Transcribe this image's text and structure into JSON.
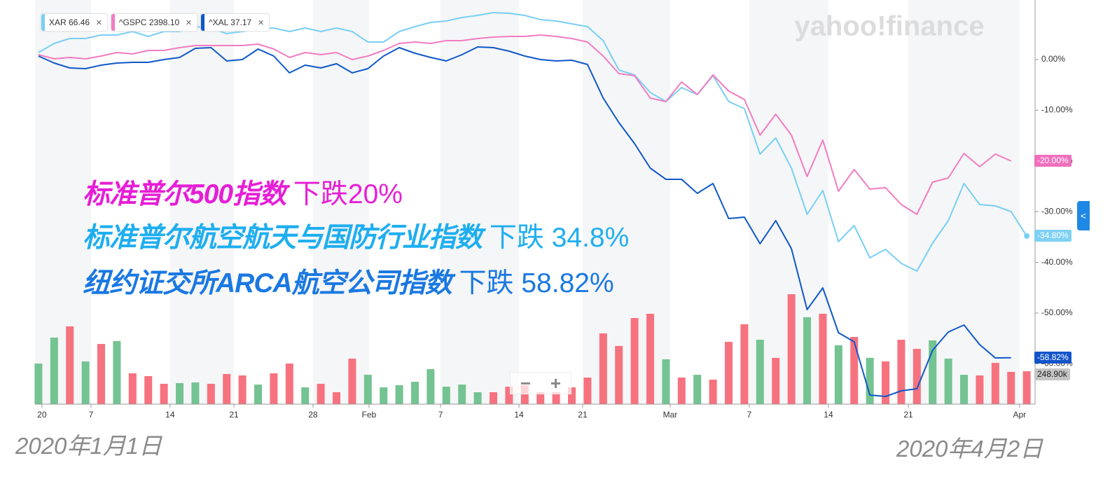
{
  "chart_data": {
    "type": "line",
    "watermark": "yahoo!finance",
    "x": [
      0,
      1,
      2,
      3,
      4,
      5,
      6,
      7,
      8,
      9,
      10,
      11,
      12,
      13,
      14,
      15,
      16,
      17,
      18,
      19,
      20,
      21,
      22,
      23,
      24,
      25,
      26,
      27,
      28,
      29,
      30,
      31,
      32,
      33,
      34,
      35,
      36,
      37,
      38,
      39,
      40,
      41,
      42,
      43,
      44,
      45,
      46,
      47,
      48,
      49,
      50,
      51,
      52,
      53,
      54,
      55,
      56,
      57,
      58,
      59,
      60,
      61,
      62,
      63
    ],
    "xlim": [
      -0.22,
      63.53
    ],
    "xticks": [
      {
        "value": 0.22,
        "label": "20"
      },
      {
        "value": 3.35,
        "label": "7"
      },
      {
        "value": 8.39,
        "label": "14"
      },
      {
        "value": 12.46,
        "label": "21"
      },
      {
        "value": 17.5,
        "label": "28"
      },
      {
        "value": 21.07,
        "label": "Feb"
      },
      {
        "value": 25.63,
        "label": "7"
      },
      {
        "value": 30.63,
        "label": "14"
      },
      {
        "value": 34.69,
        "label": "21"
      },
      {
        "value": 40.27,
        "label": "Mar"
      },
      {
        "value": 45.31,
        "label": "7"
      },
      {
        "value": 50.36,
        "label": "14"
      },
      {
        "value": 55.45,
        "label": "21"
      },
      {
        "value": 62.54,
        "label": "Apr"
      }
    ],
    "ylim": [
      -67.96,
      10.36
    ],
    "yticks": [
      {
        "value": 0,
        "label": "0.00%"
      },
      {
        "value": -10,
        "label": "-10.00%"
      },
      {
        "value": -20,
        "label": "-20.00%"
      },
      {
        "value": -30,
        "label": "-30.00%"
      },
      {
        "value": -40,
        "label": "-40.00%"
      },
      {
        "value": -50,
        "label": "-50.00%"
      },
      {
        "value": -60,
        "label": "-60.00%"
      }
    ],
    "series": [
      {
        "name": "XAR 66.46",
        "color": "#79cff5",
        "tag_color": "#7fd1f3",
        "end_label": "-34.80%",
        "values": [
          1.38,
          3.18,
          4.14,
          4.14,
          4.83,
          4.83,
          5.52,
          4.56,
          5.52,
          5.52,
          6.49,
          6.22,
          5.11,
          5.52,
          5.94,
          6.22,
          5.52,
          6.22,
          5.52,
          6.22,
          5.52,
          3.45,
          3.45,
          5.52,
          6.49,
          7.32,
          7.6,
          8.29,
          8.7,
          9.25,
          9.12,
          8.7,
          7.87,
          7.6,
          7.04,
          6.49,
          3.73,
          -2.07,
          -3.04,
          -6.49,
          -8.29,
          -5.52,
          -6.91,
          -3.18,
          -8.29,
          -9.67,
          -18.65,
          -15.47,
          -21.41,
          -30.52,
          -25.83,
          -35.91,
          -32.73,
          -39.09,
          -37.43,
          -40.19,
          -41.71,
          -36.19,
          -31.77,
          -24.45,
          -28.59,
          -28.87,
          -29.97,
          -34.8
        ]
      },
      {
        "name": "^GSPC 2398.10",
        "color": "#f27cc2",
        "tag_color": "#f06fbd",
        "end_label": "-20.00%",
        "values": [
          0.97,
          0.14,
          0.41,
          0.14,
          0.69,
          1.38,
          1.1,
          1.8,
          1.8,
          2.35,
          2.76,
          2.76,
          2.76,
          2.76,
          3.04,
          2.07,
          0.41,
          1.38,
          0.97,
          1.38,
          0,
          0.69,
          1.8,
          3.18,
          3.45,
          3.18,
          3.73,
          3.73,
          4.14,
          4.42,
          4.56,
          4.56,
          4.83,
          4.56,
          4.14,
          3.45,
          0.69,
          -2.76,
          -3.18,
          -7.6,
          -8.29,
          -4.42,
          -6.91,
          -3.04,
          -6.22,
          -7.87,
          -14.92,
          -10.77,
          -14.92,
          -23.07,
          -15.88,
          -25.97,
          -21.69,
          -25.55,
          -25.28,
          -28.59,
          -30.52,
          -24.17,
          -23.34,
          -18.51,
          -21.13,
          -18.65,
          -20,
          null
        ]
      },
      {
        "name": "^XAL 37.17",
        "color": "#0f58c8",
        "tag_color": "#1254c9",
        "end_label": "-58.82%",
        "values": [
          0.69,
          -0.69,
          -1.66,
          -1.8,
          -1.1,
          -0.69,
          -0.55,
          -0.55,
          0,
          0.41,
          2.21,
          2.35,
          -0.28,
          0,
          2.07,
          0.69,
          -2.62,
          -1.1,
          -1.66,
          -0.83,
          -2.62,
          -1.8,
          0.69,
          2.35,
          1.24,
          0.41,
          -0.28,
          0.97,
          2.49,
          2.35,
          1.66,
          0.69,
          0,
          -0.28,
          -0.14,
          -0.97,
          -7.6,
          -12.43,
          -16.57,
          -21.41,
          -23.62,
          -23.62,
          -26.38,
          -24.45,
          -31.35,
          -31.08,
          -36.33,
          -31.77,
          -37.29,
          -49.31,
          -45.03,
          -53.87,
          -55.66,
          -66.16,
          -66.44,
          -65.33,
          -64.92,
          -57.32,
          -53.73,
          -52.35,
          -56.22,
          -58.84,
          -58.82,
          null
        ]
      }
    ],
    "legend_close": "×",
    "volume": {
      "values": [
        307000,
        503000,
        588000,
        323000,
        455000,
        477000,
        233000,
        212000,
        154000,
        159000,
        164000,
        154000,
        228000,
        217000,
        148000,
        233000,
        307000,
        127000,
        154000,
        90000,
        344000,
        222000,
        127000,
        143000,
        169000,
        265000,
        132000,
        148000,
        90000,
        90000,
        132000,
        143000,
        90000,
        90000,
        127000,
        201000,
        535000,
        440000,
        651000,
        683000,
        339000,
        201000,
        222000,
        185000,
        471000,
        604000,
        487000,
        350000,
        831000,
        657000,
        683000,
        445000,
        508000,
        350000,
        323000,
        487000,
        418000,
        482000,
        344000,
        222000,
        217000,
        312000,
        244000,
        248900
      ],
      "up": [
        true,
        true,
        false,
        true,
        false,
        true,
        false,
        false,
        false,
        true,
        true,
        false,
        false,
        false,
        true,
        false,
        false,
        true,
        false,
        false,
        false,
        true,
        true,
        true,
        true,
        true,
        true,
        true,
        true,
        false,
        false,
        false,
        false,
        false,
        false,
        false,
        false,
        false,
        false,
        false,
        true,
        false,
        true,
        false,
        false,
        false,
        true,
        false,
        false,
        true,
        false,
        true,
        false,
        true,
        false,
        false,
        false,
        true,
        true,
        true,
        false,
        false,
        false,
        false
      ],
      "up_color": "#74c392",
      "down_color": "#f7727f",
      "ylim": [
        0,
        900000
      ],
      "end_label": "248.90k"
    },
    "annotations": [
      {
        "name": "标准普尔500指数",
        "change": "下跌20%",
        "color": "#e61ed6"
      },
      {
        "name": "标准普尔航空航天与国防行业指数",
        "change": "下跌 34.8%",
        "color": "#1eaef0"
      },
      {
        "name": "纽约证交所ARCA航空公司指数",
        "change": "下跌 58.82%",
        "color": "#1a78e2"
      }
    ],
    "start_date": "2020年1月1日",
    "end_date": "2020年4月2日",
    "zoom": [
      "−",
      "+"
    ],
    "side_tab": "<"
  }
}
